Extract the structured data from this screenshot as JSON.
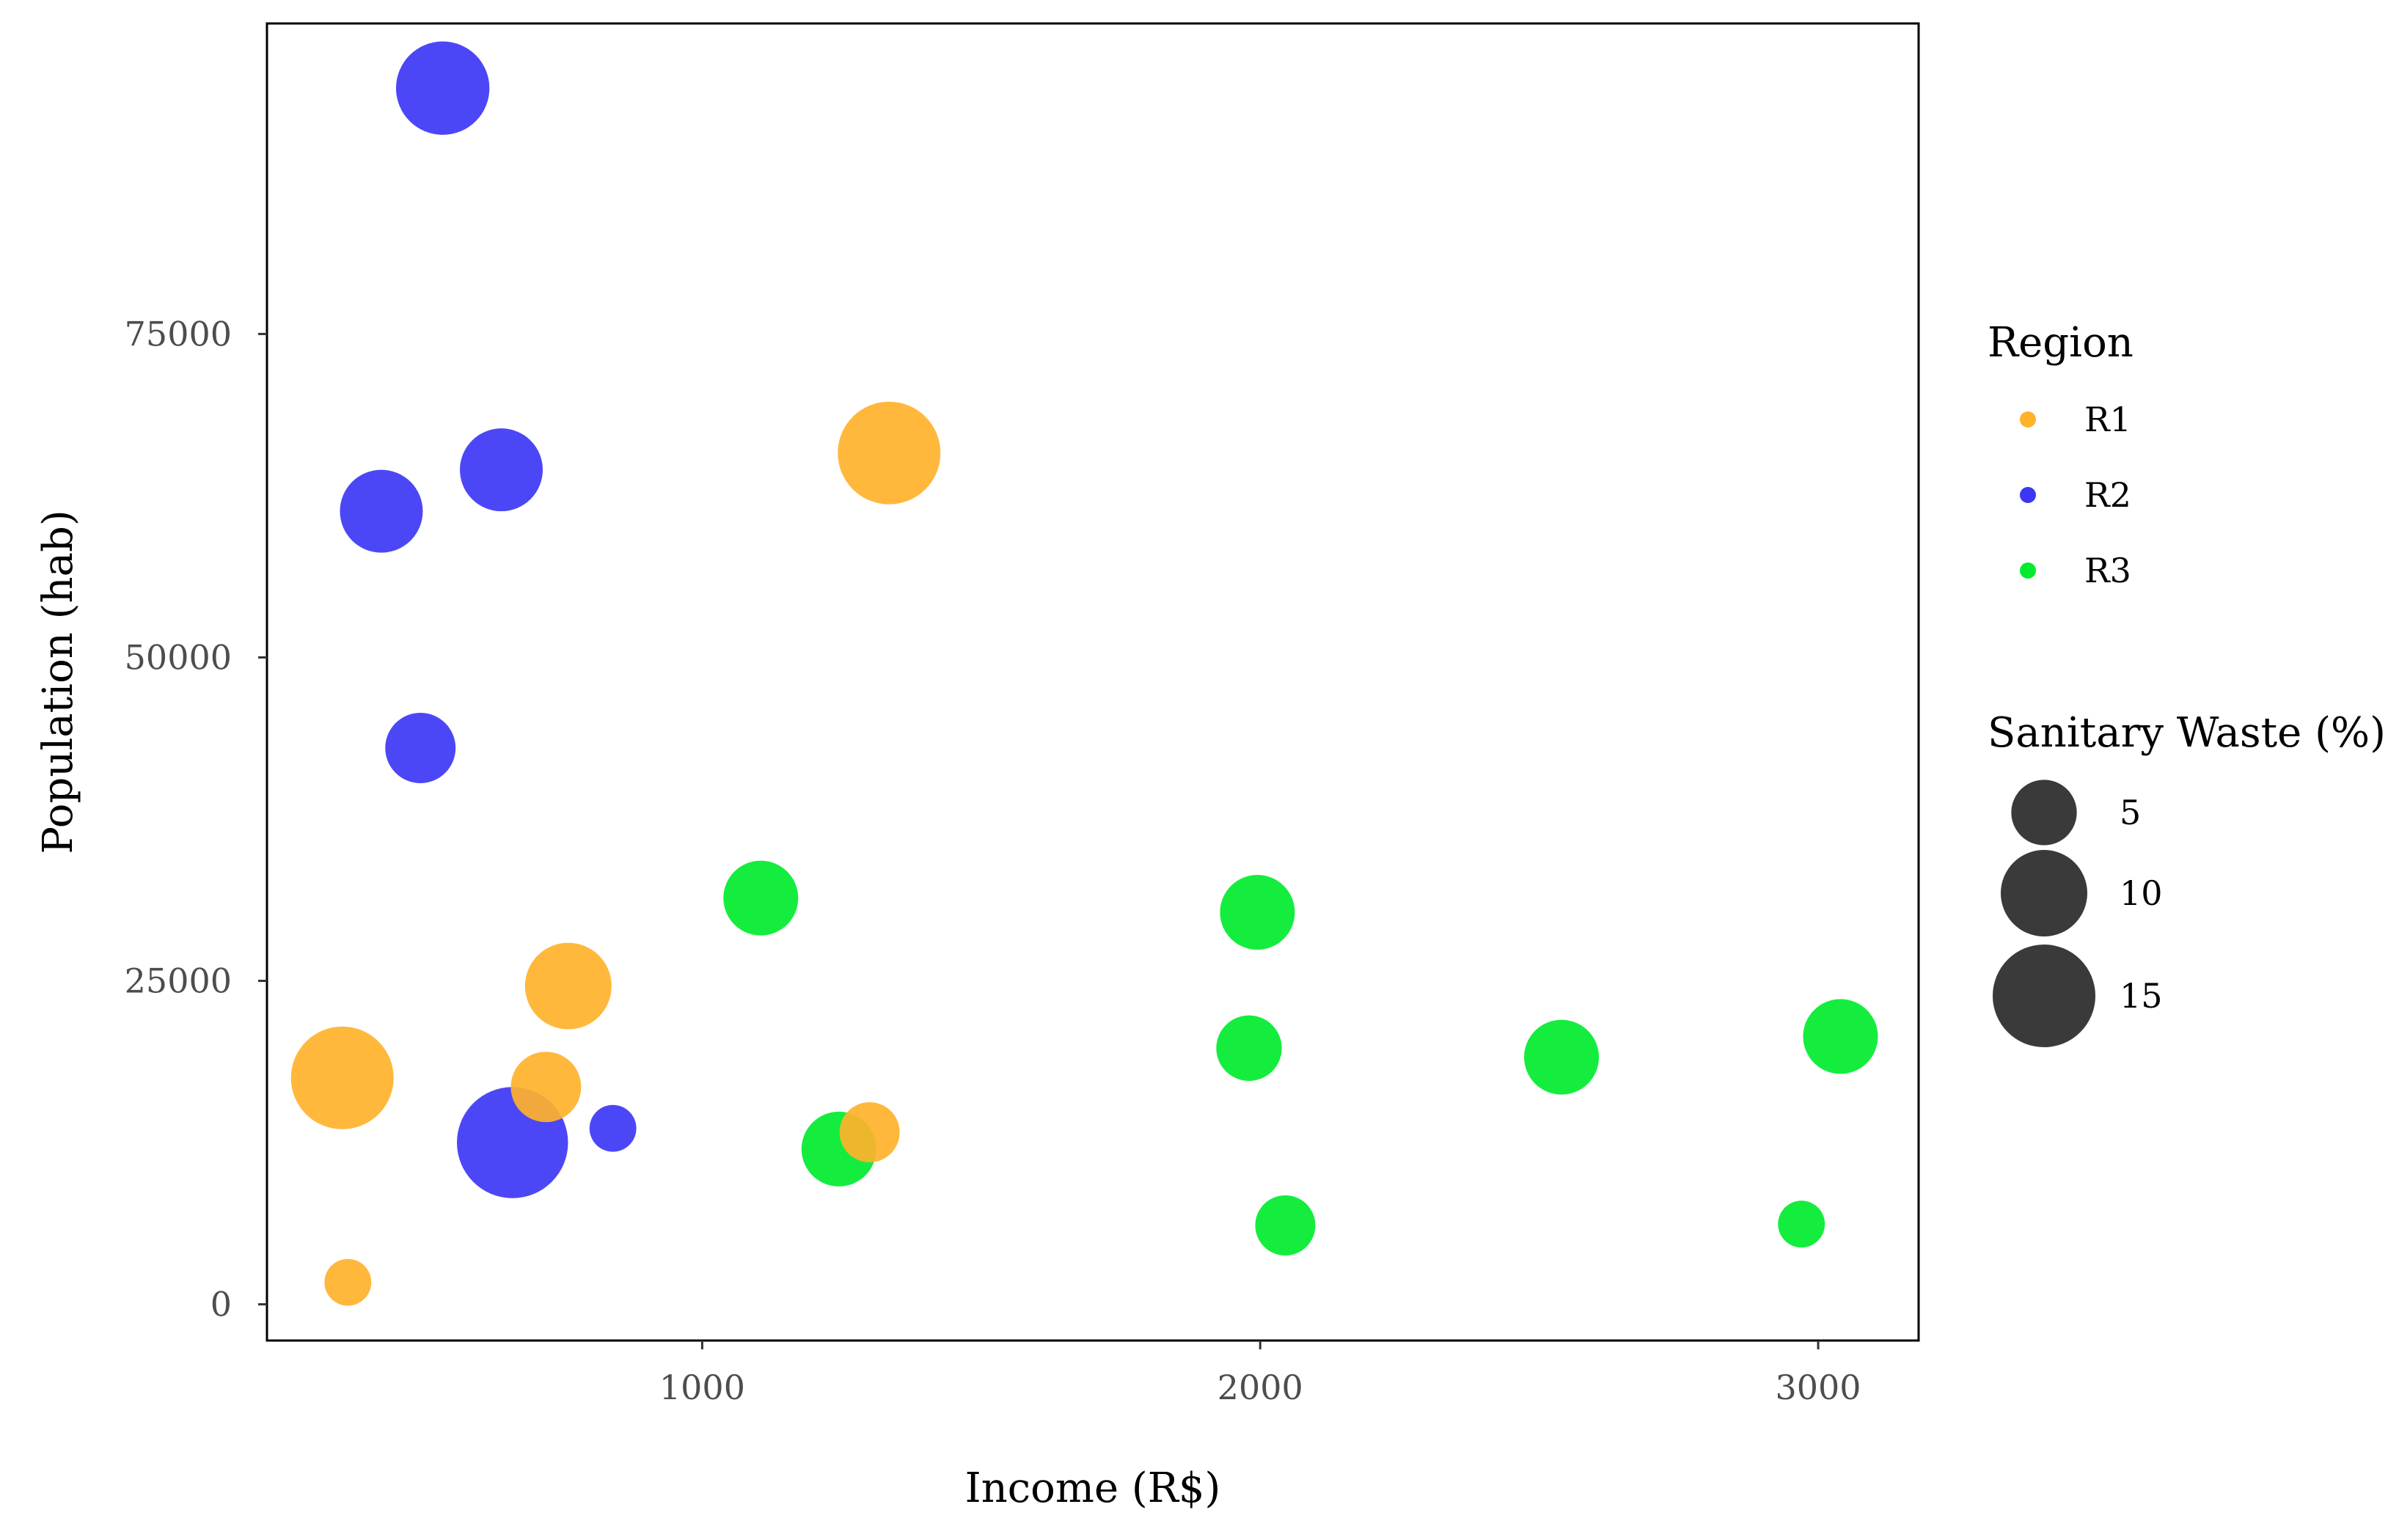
{
  "chart_data": {
    "type": "scatter",
    "xlabel": "Income (R$)",
    "ylabel": "Population (hab)",
    "xlim": [
      220,
      3180
    ],
    "ylim": [
      -2800,
      99000
    ],
    "x_ticks": [
      1000,
      2000,
      3000
    ],
    "y_ticks": [
      0,
      25000,
      50000,
      75000
    ],
    "x_tick_labels": [
      "1000",
      "2000",
      "3000"
    ],
    "y_tick_labels": [
      "0",
      "25000",
      "50000",
      "75000"
    ],
    "grid": false,
    "legend_position": "right",
    "color_legend": {
      "title": "Region",
      "entries": [
        {
          "label": "R1",
          "color": "#FFB22B"
        },
        {
          "label": "R2",
          "color": "#3D37F5"
        },
        {
          "label": "R3",
          "color": "#00EC2E"
        }
      ]
    },
    "size_legend": {
      "title": "Sanitary Waste (%)",
      "entries": [
        {
          "label": "5",
          "value": 5
        },
        {
          "label": "10",
          "value": 10
        },
        {
          "label": "15",
          "value": 15
        }
      ],
      "color": "#3a3a3a"
    },
    "series": [
      {
        "name": "R1",
        "color": "#FFB22B",
        "points": [
          {
            "x": 355,
            "y": 17500,
            "size": 15
          },
          {
            "x": 365,
            "y": 1700,
            "size": 2
          },
          {
            "x": 720,
            "y": 16800,
            "size": 6
          },
          {
            "x": 760,
            "y": 24600,
            "size": 10
          },
          {
            "x": 1300,
            "y": 13300,
            "size": 4
          },
          {
            "x": 1335,
            "y": 65800,
            "size": 15
          }
        ]
      },
      {
        "name": "R2",
        "color": "#3D37F5",
        "points": [
          {
            "x": 535,
            "y": 94000,
            "size": 12
          },
          {
            "x": 425,
            "y": 61300,
            "size": 9
          },
          {
            "x": 640,
            "y": 64500,
            "size": 9
          },
          {
            "x": 495,
            "y": 43000,
            "size": 6
          },
          {
            "x": 660,
            "y": 12500,
            "size": 18
          },
          {
            "x": 840,
            "y": 13600,
            "size": 2
          }
        ]
      },
      {
        "name": "R3",
        "color": "#00EC2E",
        "points": [
          {
            "x": 1105,
            "y": 31400,
            "size": 7
          },
          {
            "x": 1245,
            "y": 12000,
            "size": 7
          },
          {
            "x": 1995,
            "y": 30300,
            "size": 7
          },
          {
            "x": 1980,
            "y": 19800,
            "size": 5
          },
          {
            "x": 2045,
            "y": 6100,
            "size": 4
          },
          {
            "x": 2540,
            "y": 19100,
            "size": 7
          },
          {
            "x": 3040,
            "y": 20700,
            "size": 7
          },
          {
            "x": 2970,
            "y": 6200,
            "size": 2
          }
        ]
      }
    ]
  }
}
